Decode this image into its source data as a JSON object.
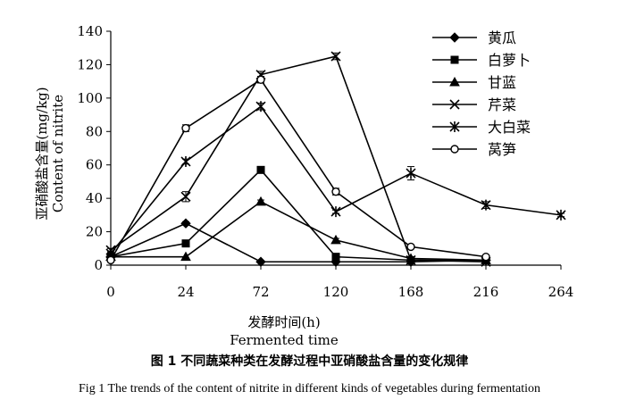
{
  "chart_data": {
    "type": "line",
    "x": [
      0,
      24,
      72,
      120,
      168,
      216,
      264
    ],
    "xlabel_cn": "发酵时间(h)",
    "xlabel_en": "Fermented time",
    "ylabel_cn": "亚硝酸盐含量(mg/kg)",
    "ylabel_en": "Content of nitrite",
    "ylim": [
      0,
      140
    ],
    "yticks": [
      0,
      20,
      40,
      60,
      80,
      100,
      120,
      140
    ],
    "xticks": [
      "0",
      "24",
      "72",
      "120",
      "168",
      "216",
      "264"
    ],
    "legend_position": "top-right",
    "series": [
      {
        "name": "黄瓜",
        "marker": "diamond",
        "values": [
          5,
          25,
          2,
          2,
          2,
          3,
          null
        ],
        "errors": [
          0,
          1,
          0,
          0,
          0,
          0,
          null
        ]
      },
      {
        "name": "白萝卜",
        "marker": "square",
        "values": [
          5,
          13,
          57,
          5,
          3,
          3,
          null
        ],
        "errors": [
          0,
          1,
          1.5,
          1,
          0,
          0,
          null
        ]
      },
      {
        "name": "甘蓝",
        "marker": "triangle",
        "values": [
          5,
          5,
          38,
          15,
          4,
          3,
          null
        ],
        "errors": [
          0,
          0,
          1,
          1,
          0,
          0,
          null
        ]
      },
      {
        "name": "芹菜",
        "marker": "x",
        "values": [
          9,
          41,
          114,
          125,
          3,
          2,
          null
        ],
        "errors": [
          1,
          3,
          2,
          2,
          0,
          0,
          null
        ]
      },
      {
        "name": "大白菜",
        "marker": "asterisk",
        "values": [
          7,
          62,
          95,
          32,
          55,
          36,
          30
        ],
        "errors": [
          1,
          1.5,
          2,
          1,
          4,
          2,
          1
        ]
      },
      {
        "name": "莴笋",
        "marker": "circle",
        "values": [
          3,
          82,
          111,
          44,
          11,
          5,
          null
        ],
        "errors": [
          0,
          2,
          2,
          2,
          1,
          0.5,
          null
        ]
      }
    ],
    "caption_cn": "图 1  不同蔬菜种类在发酵过程中亚硝酸盐含量的变化规律",
    "caption_en": "Fig 1 The trends of the content of nitrite in different kinds of vegetables during fermentation"
  }
}
